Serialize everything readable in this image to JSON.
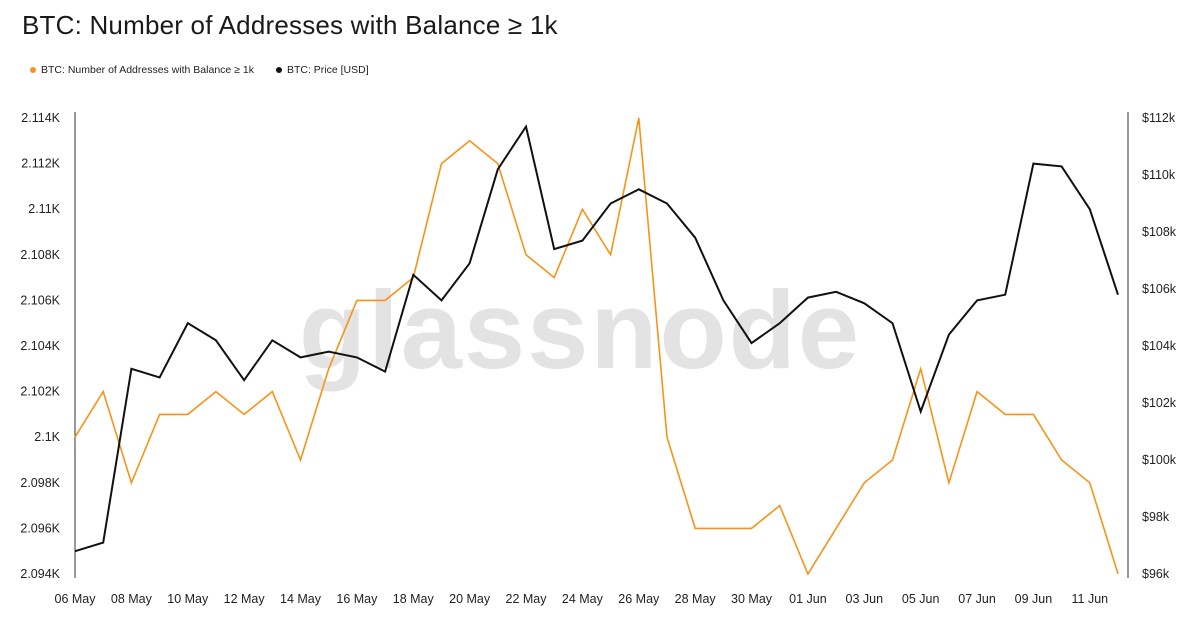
{
  "title": "BTC: Number of Addresses with Balance ≥ 1k",
  "watermark": "glassnode",
  "legend": [
    {
      "label": "BTC: Number of Addresses with Balance ≥ 1k",
      "color": "#f7931a"
    },
    {
      "label": "BTC: Price [USD]",
      "color": "#111111"
    }
  ],
  "chart_data": {
    "type": "line",
    "x": [
      "06 May",
      "07 May",
      "08 May",
      "09 May",
      "10 May",
      "11 May",
      "12 May",
      "13 May",
      "14 May",
      "15 May",
      "16 May",
      "17 May",
      "18 May",
      "19 May",
      "20 May",
      "21 May",
      "22 May",
      "23 May",
      "24 May",
      "25 May",
      "26 May",
      "27 May",
      "28 May",
      "29 May",
      "30 May",
      "31 May",
      "01 Jun",
      "02 Jun",
      "03 Jun",
      "04 Jun",
      "05 Jun",
      "06 Jun",
      "07 Jun",
      "08 Jun",
      "09 Jun",
      "10 Jun",
      "11 Jun",
      "12 Jun"
    ],
    "x_tick_labels": [
      "06 May",
      "08 May",
      "10 May",
      "12 May",
      "14 May",
      "16 May",
      "18 May",
      "20 May",
      "22 May",
      "24 May",
      "26 May",
      "28 May",
      "30 May",
      "01 Jun",
      "03 Jun",
      "05 Jun",
      "07 Jun",
      "09 Jun",
      "11 Jun"
    ],
    "series": [
      {
        "name": "BTC: Number of Addresses with Balance ≥ 1k",
        "axis": "left",
        "color": "#f7931a",
        "values": [
          2100,
          2102,
          2098,
          2101,
          2101,
          2102,
          2101,
          2102,
          2099,
          2103,
          2106,
          2106,
          2107,
          2112,
          2113,
          2112,
          2108,
          2107,
          2110,
          2108,
          2114,
          2100,
          2096,
          2096,
          2096,
          2097,
          2094,
          2096,
          2098,
          2099,
          2103,
          2098,
          2102,
          2101,
          2101,
          2099,
          2098,
          2094
        ]
      },
      {
        "name": "BTC: Price [USD]",
        "axis": "right",
        "color": "#111111",
        "values": [
          96800,
          97100,
          103200,
          102900,
          104800,
          104200,
          102800,
          104200,
          103600,
          103800,
          103600,
          103100,
          106500,
          105600,
          106900,
          110200,
          111700,
          107400,
          107700,
          109000,
          109500,
          109000,
          107800,
          105600,
          104100,
          104800,
          105700,
          105900,
          105500,
          104800,
          101700,
          104400,
          105600,
          105800,
          110400,
          110300,
          108800,
          105800
        ]
      }
    ],
    "y_left": {
      "min": 2094,
      "max": 2114,
      "ticks": [
        2114,
        2112,
        2110,
        2108,
        2106,
        2104,
        2102,
        2100,
        2098,
        2096,
        2094
      ],
      "tick_labels": [
        "2.114K",
        "2.112K",
        "2.11K",
        "2.108K",
        "2.106K",
        "2.104K",
        "2.102K",
        "2.1K",
        "2.098K",
        "2.096K",
        "2.094K"
      ]
    },
    "y_right": {
      "min": 96000,
      "max": 112000,
      "ticks": [
        112000,
        110000,
        108000,
        106000,
        104000,
        102000,
        100000,
        98000,
        96000
      ],
      "tick_labels": [
        "$112k",
        "$110k",
        "$108k",
        "$106k",
        "$104k",
        "$102k",
        "$100k",
        "$98k",
        "$96k"
      ]
    },
    "grid": false,
    "legend_position": "top-left"
  }
}
